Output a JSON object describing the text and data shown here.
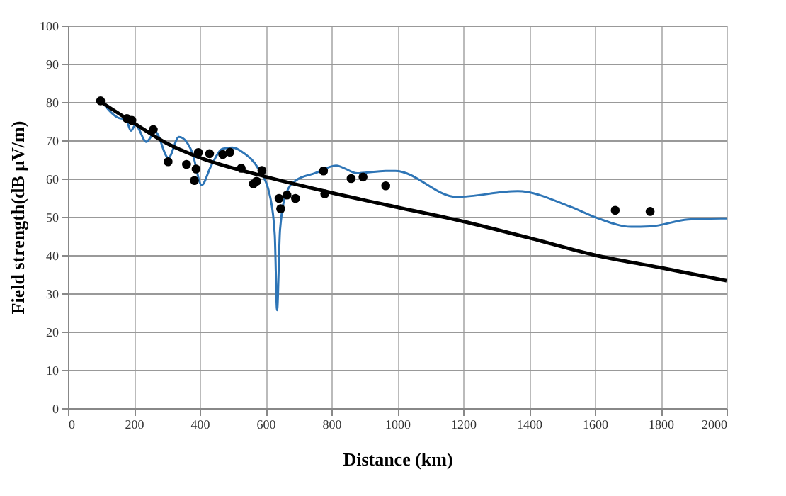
{
  "chart_data": {
    "type": "scatter",
    "xlabel": "Distance (km)",
    "ylabel": "Field strength(dB  μV/m)",
    "xlim": [
      0,
      2000
    ],
    "xticks": [
      0,
      200,
      400,
      600,
      800,
      1000,
      1200,
      1400,
      1600,
      1800,
      2000
    ],
    "ylim": [
      0,
      100
    ],
    "yticks": [
      0,
      10,
      20,
      30,
      40,
      50,
      60,
      70,
      80,
      90,
      100
    ],
    "grid": true,
    "series": [
      {
        "type": "line",
        "color": "#2e75b6",
        "x": [
          105,
          155,
          176,
          191,
          205,
          238,
          265,
          305,
          337,
          377,
          406,
          434,
          470,
          499,
          535,
          578,
          614,
          628,
          635,
          644,
          664,
          692,
          750,
          814,
          879,
          965,
          994,
          1180,
          1366,
          1524,
          1610,
          1710,
          1768,
          1883,
          2000
        ],
        "values": [
          79.9,
          75.8,
          75.5,
          72.5,
          74,
          69.6,
          72.2,
          65.4,
          70.9,
          66.9,
          58.3,
          63.2,
          67.8,
          68.1,
          66.6,
          62.6,
          55.2,
          45.3,
          25.6,
          46.6,
          56.4,
          59.5,
          61.4,
          63.4,
          61.4,
          62,
          62,
          55.2,
          56.7,
          52.7,
          49.6,
          47.4,
          47.5,
          49.3,
          49.6
        ]
      },
      {
        "type": "line",
        "color": "#000000",
        "x": [
          100,
          200,
          300,
          400,
          600,
          800,
          1000,
          1200,
          1400,
          1600,
          1800,
          2000
        ],
        "values": [
          80,
          74.5,
          69.2,
          65.5,
          60.5,
          56.3,
          52.5,
          48.8,
          44.5,
          40,
          36.7,
          33.3
        ]
      },
      {
        "color": "#000000",
        "marker": "circle",
        "x": [
          99,
          179,
          194,
          259,
          304,
          360,
          389,
          384,
          396,
          430,
          470,
          492,
          526,
          563,
          573,
          589,
          641,
          646,
          665,
          691,
          776,
          780,
          860,
          896,
          965,
          1662,
          1768
        ],
        "values": [
          80.3,
          75.7,
          75.2,
          72.8,
          64.4,
          63.7,
          62.5,
          59.5,
          66.8,
          66.5,
          66.3,
          66.9,
          62.7,
          58.6,
          59.3,
          62.1,
          54.8,
          52.1,
          55.7,
          54.8,
          62,
          56,
          60,
          60.4,
          58.1,
          51.7,
          51.4
        ]
      }
    ]
  }
}
